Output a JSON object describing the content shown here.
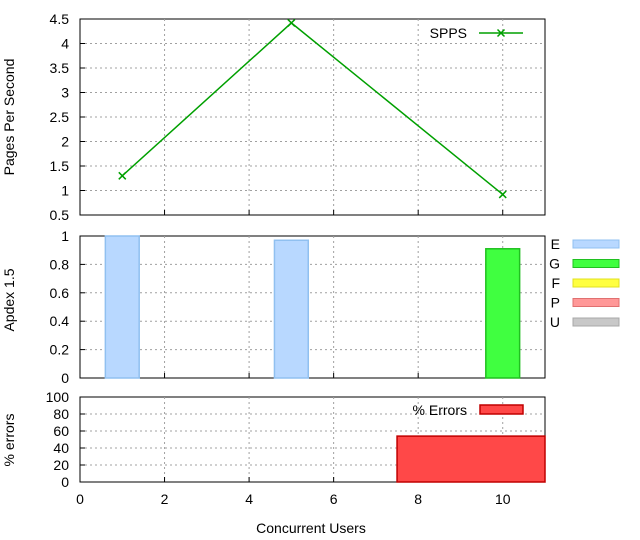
{
  "chart_data": [
    {
      "type": "line",
      "ylabel": "Pages Per Second",
      "xlim": [
        0,
        11
      ],
      "ylim": [
        0.5,
        4.5
      ],
      "yticks": [
        "0.5",
        "1",
        "1.5",
        "2",
        "2.5",
        "3",
        "3.5",
        "4",
        "4.5"
      ],
      "xticks": [
        0,
        2,
        4,
        6,
        8,
        10
      ],
      "grid": true,
      "legend_position": "top-right",
      "series": [
        {
          "name": "SPPS",
          "color": "#00a000",
          "marker": "x",
          "x": [
            1,
            5,
            10
          ],
          "y": [
            1.3,
            4.42,
            0.92
          ]
        }
      ]
    },
    {
      "type": "bar",
      "ylabel": "Apdex 1.5",
      "xlim": [
        0,
        11
      ],
      "ylim": [
        0,
        1
      ],
      "yticks": [
        "0",
        "0.2",
        "0.4",
        "0.6",
        "0.8",
        "1"
      ],
      "grid": true,
      "legend_position": "right-outside",
      "legend": [
        {
          "name": "E",
          "fill": "#b8d8ff",
          "stroke": "#90c0f0"
        },
        {
          "name": "G",
          "fill": "#40ff40",
          "stroke": "#20c020"
        },
        {
          "name": "F",
          "fill": "#ffff40",
          "stroke": "#e0e020"
        },
        {
          "name": "P",
          "fill": "#ff9898",
          "stroke": "#e07070"
        },
        {
          "name": "U",
          "fill": "#c8c8c8",
          "stroke": "#a8a8a8"
        }
      ],
      "bars": [
        {
          "x": 1,
          "value": 1.0,
          "category": "E"
        },
        {
          "x": 5,
          "value": 0.97,
          "category": "E"
        },
        {
          "x": 10,
          "value": 0.91,
          "category": "G"
        }
      ]
    },
    {
      "type": "bar",
      "ylabel": "% errors",
      "xlabel": "Concurrent Users",
      "xlim": [
        0,
        11
      ],
      "ylim": [
        0,
        100
      ],
      "yticks": [
        "0",
        "20",
        "40",
        "60",
        "80",
        "100"
      ],
      "xticks": [
        "0",
        "2",
        "4",
        "6",
        "8",
        "10"
      ],
      "grid": true,
      "legend_position": "top-right",
      "series": [
        {
          "name": "% Errors",
          "fill": "#ff4848",
          "stroke": "#c00000",
          "bars": [
            {
              "x_start": 7.5,
              "x_end": 11,
              "value": 54
            }
          ]
        }
      ]
    }
  ]
}
